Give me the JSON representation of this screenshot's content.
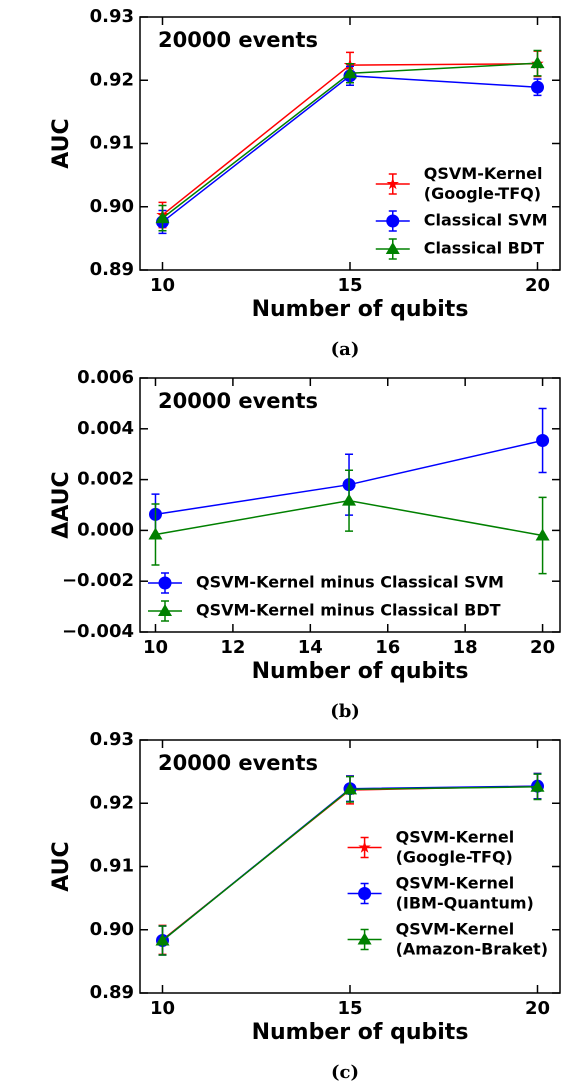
{
  "chart_data": [
    {
      "type": "line",
      "annotation": "20000 events",
      "caption": "(a)",
      "xlabel": "Number of qubits",
      "ylabel": "AUC",
      "x": [
        10,
        15,
        20
      ],
      "xlim": [
        9.4,
        20.6
      ],
      "xticks": [
        10,
        15,
        20
      ],
      "ylim": [
        0.89,
        0.93
      ],
      "yticks": [
        0.89,
        {
          "value": 0.9,
          "label": "0.90"
        },
        0.91,
        0.92,
        0.93
      ],
      "legend": "lower right",
      "series": [
        {
          "name": "QSVM-Kernel (Google-TFQ)",
          "color": "#ff0000",
          "marker": "star",
          "values": [
            0.8987,
            0.9224,
            0.9226
          ],
          "errors": [
            0.002,
            0.002,
            0.002
          ]
        },
        {
          "name": "Classical SVM",
          "color": "#0000ff",
          "marker": "circle",
          "values": [
            0.8976,
            0.9207,
            0.9189
          ],
          "errors": [
            0.0018,
            0.0015,
            0.0013
          ]
        },
        {
          "name": "Classical BDT",
          "color": "#008000",
          "marker": "triangle",
          "values": [
            0.8982,
            0.9211,
            0.9227
          ],
          "errors": [
            0.002,
            0.0015,
            0.002
          ]
        }
      ]
    },
    {
      "type": "line",
      "annotation": "20000 events",
      "caption": "(b)",
      "xlabel": "Number of qubits",
      "ylabel": "ΔAUC",
      "x": [
        10,
        15,
        20
      ],
      "xlim": [
        9.6,
        20.45
      ],
      "xticks": [
        10,
        12,
        14,
        16,
        18,
        20
      ],
      "ylim": [
        -0.004,
        0.006
      ],
      "yticks": [
        {
          "value": -0.004,
          "label": "−0.004"
        },
        {
          "value": -0.002,
          "label": "−0.002"
        },
        {
          "value": 0,
          "label": "0.000"
        },
        0.002,
        0.004,
        0.006
      ],
      "legend": "lower left",
      "series": [
        {
          "name": "QSVM-Kernel minus Classical SVM",
          "color": "#0000ff",
          "marker": "circle",
          "values": [
            0.00063,
            0.0018,
            0.00354
          ],
          "errors": [
            0.0008,
            0.0012,
            0.00126
          ]
        },
        {
          "name": "QSVM-Kernel minus Classical BDT",
          "color": "#008000",
          "marker": "triangle",
          "values": [
            -0.00016,
            0.00117,
            -0.0002
          ],
          "errors": [
            0.0012,
            0.0012,
            0.0015
          ]
        }
      ]
    },
    {
      "type": "line",
      "annotation": "20000 events",
      "caption": "(c)",
      "xlabel": "Number of qubits",
      "ylabel": "AUC",
      "x": [
        10,
        15,
        20
      ],
      "xlim": [
        9.4,
        20.6
      ],
      "xticks": [
        10,
        15,
        20
      ],
      "ylim": [
        0.89,
        0.93
      ],
      "yticks": [
        0.89,
        {
          "value": 0.9,
          "label": "0.90"
        },
        0.91,
        0.92,
        0.93
      ],
      "legend": "center right",
      "series": [
        {
          "name": "QSVM-Kernel (Google-TFQ)",
          "color": "#ff0000",
          "marker": "star",
          "values": [
            0.8984,
            0.9221,
            0.9227
          ],
          "errors": [
            0.0023,
            0.0022,
            0.002
          ]
        },
        {
          "name": "QSVM-Kernel (IBM-Quantum)",
          "color": "#0000ff",
          "marker": "circle",
          "values": [
            0.8983,
            0.9223,
            0.9227
          ],
          "errors": [
            0.0023,
            0.002,
            0.002
          ]
        },
        {
          "name": "QSVM-Kernel (Amazon-Braket)",
          "color": "#008000",
          "marker": "triangle",
          "values": [
            0.8983,
            0.9222,
            0.9226
          ],
          "errors": [
            0.0023,
            0.002,
            0.002
          ]
        }
      ]
    }
  ]
}
